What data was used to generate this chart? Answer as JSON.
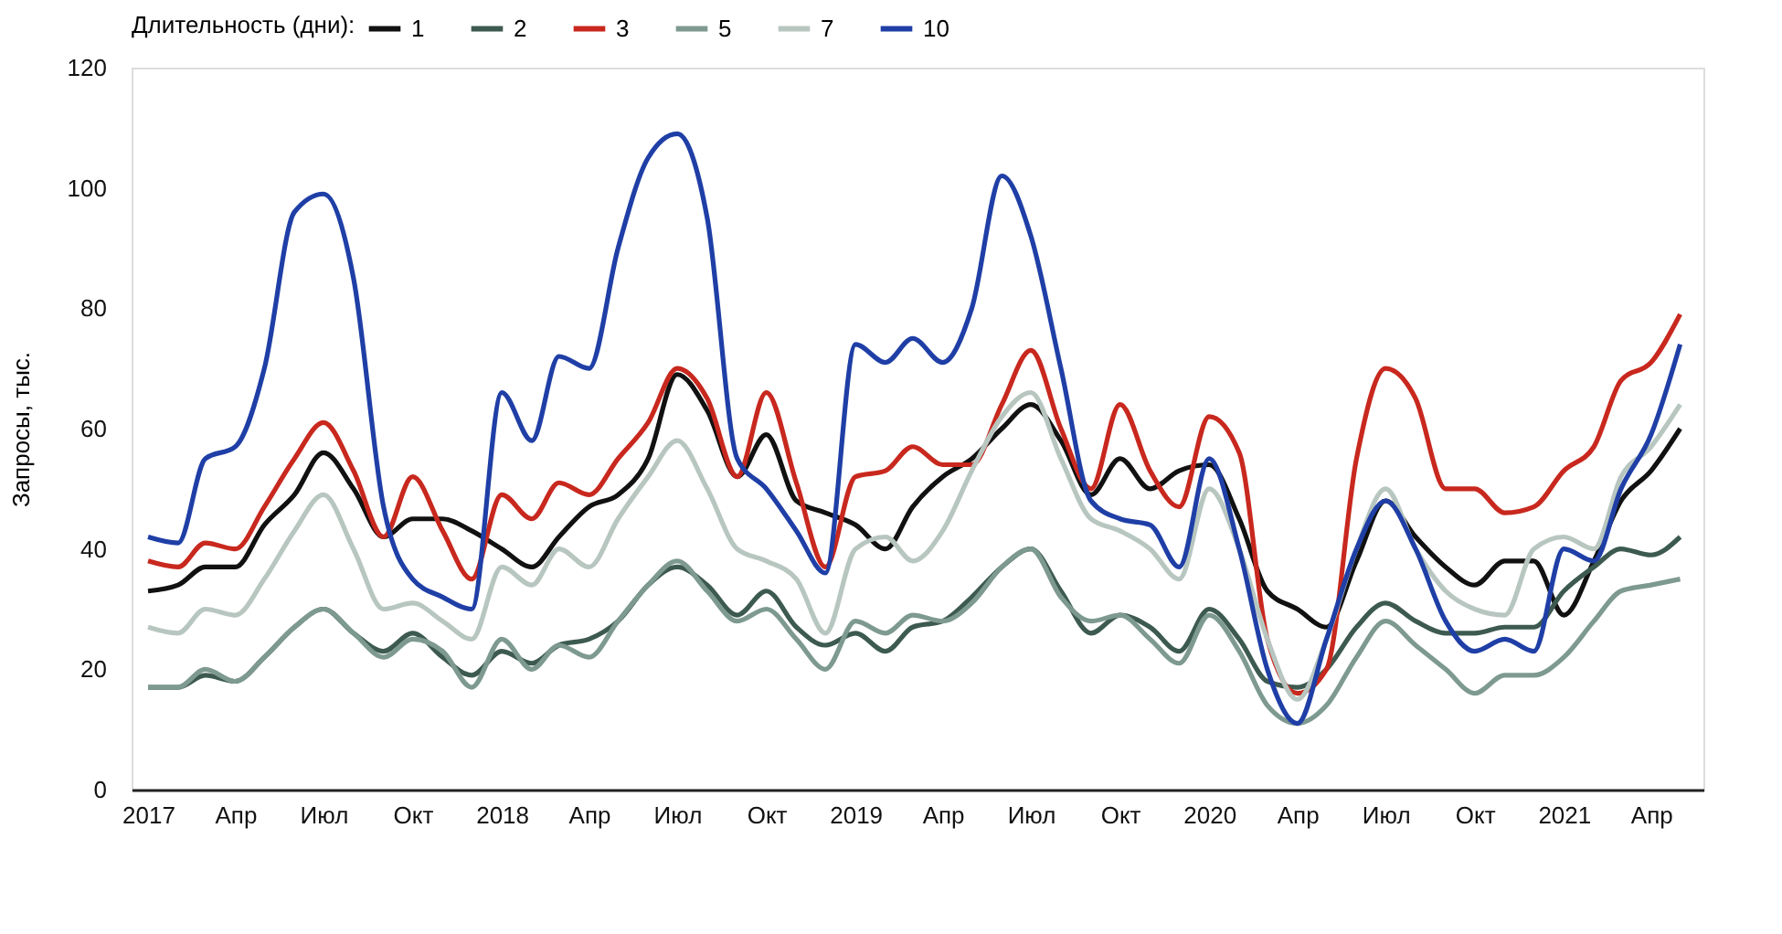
{
  "chart_data": {
    "type": "line",
    "ylabel": "Запросы, тыс.",
    "legend_title": "Длительность (дни):",
    "legend": "top",
    "grid": false,
    "marker": "none",
    "line_style": "solid",
    "x": [
      "2017-01",
      "2017-02",
      "2017-03",
      "2017-04",
      "2017-05",
      "2017-06",
      "2017-07",
      "2017-08",
      "2017-09",
      "2017-10",
      "2017-11",
      "2017-12",
      "2018-01",
      "2018-02",
      "2018-03",
      "2018-04",
      "2018-05",
      "2018-06",
      "2018-07",
      "2018-08",
      "2018-09",
      "2018-10",
      "2018-11",
      "2018-12",
      "2019-01",
      "2019-02",
      "2019-03",
      "2019-04",
      "2019-05",
      "2019-06",
      "2019-07",
      "2019-08",
      "2019-09",
      "2019-10",
      "2019-11",
      "2019-12",
      "2020-01",
      "2020-02",
      "2020-03",
      "2020-04",
      "2020-05",
      "2020-06",
      "2020-07",
      "2020-08",
      "2020-09",
      "2020-10",
      "2020-11",
      "2020-12",
      "2021-01",
      "2021-02",
      "2021-03",
      "2021-04",
      "2021-05"
    ],
    "xlim": [
      "2016-12-15",
      "2021-05-25"
    ],
    "xticks": [
      {
        "value": "2017-01",
        "label": "2017"
      },
      {
        "value": "2017-04",
        "label": "Апр"
      },
      {
        "value": "2017-07",
        "label": "Июл"
      },
      {
        "value": "2017-10",
        "label": "Окт"
      },
      {
        "value": "2018-01",
        "label": "2018"
      },
      {
        "value": "2018-04",
        "label": "Апр"
      },
      {
        "value": "2018-07",
        "label": "Июл"
      },
      {
        "value": "2018-10",
        "label": "Окт"
      },
      {
        "value": "2019-01",
        "label": "2019"
      },
      {
        "value": "2019-04",
        "label": "Апр"
      },
      {
        "value": "2019-07",
        "label": "Июл"
      },
      {
        "value": "2019-10",
        "label": "Окт"
      },
      {
        "value": "2020-01",
        "label": "2020"
      },
      {
        "value": "2020-04",
        "label": "Апр"
      },
      {
        "value": "2020-07",
        "label": "Июл"
      },
      {
        "value": "2020-10",
        "label": "Окт"
      },
      {
        "value": "2021-01",
        "label": "2021"
      },
      {
        "value": "2021-04",
        "label": "Апр"
      }
    ],
    "ylim": [
      0,
      120
    ],
    "yticks": [
      0,
      20,
      40,
      60,
      80,
      100,
      120
    ],
    "series": [
      {
        "name": "1",
        "color": "#111111",
        "values": [
          33,
          34,
          37,
          37,
          44,
          49,
          56,
          50,
          42,
          45,
          45,
          43,
          40,
          37,
          42,
          47,
          49,
          55,
          69,
          63,
          52,
          59,
          48,
          46,
          44,
          40,
          47,
          52,
          55,
          60,
          64,
          58,
          49,
          55,
          50,
          53,
          54,
          45,
          33,
          30,
          27,
          38,
          48,
          42,
          37,
          34,
          38,
          38,
          29,
          38,
          48,
          53,
          60
        ]
      },
      {
        "name": "2",
        "color": "#3d5a50",
        "values": [
          17,
          17,
          19,
          18,
          22,
          27,
          30,
          26,
          23,
          26,
          22,
          19,
          23,
          21,
          24,
          25,
          28,
          34,
          37,
          34,
          29,
          33,
          27,
          24,
          26,
          23,
          27,
          28,
          32,
          37,
          40,
          33,
          26,
          29,
          27,
          23,
          30,
          25,
          18,
          17,
          20,
          27,
          31,
          28,
          26,
          26,
          27,
          27,
          33,
          37,
          40,
          39,
          42
        ]
      },
      {
        "name": "3",
        "color": "#c8281e",
        "values": [
          38,
          37,
          41,
          40,
          47,
          55,
          61,
          53,
          42,
          52,
          43,
          35,
          49,
          45,
          51,
          49,
          55,
          61,
          70,
          65,
          52,
          66,
          51,
          37,
          52,
          53,
          57,
          54,
          54,
          64,
          73,
          60,
          50,
          64,
          53,
          47,
          62,
          56,
          25,
          16,
          20,
          55,
          70,
          65,
          50,
          50,
          46,
          47,
          53,
          57,
          68,
          71,
          79
        ]
      },
      {
        "name": "5",
        "color": "#7e9a90",
        "values": [
          17,
          17,
          20,
          18,
          22,
          27,
          30,
          26,
          22,
          25,
          23,
          17,
          25,
          20,
          24,
          22,
          28,
          34,
          38,
          33,
          28,
          30,
          25,
          20,
          28,
          26,
          29,
          28,
          31,
          37,
          40,
          32,
          28,
          29,
          25,
          21,
          29,
          23,
          14,
          11,
          14,
          22,
          28,
          24,
          20,
          16,
          19,
          19,
          22,
          28,
          33,
          34,
          35
        ]
      },
      {
        "name": "7",
        "color": "#b8c6c0",
        "values": [
          27,
          26,
          30,
          29,
          35,
          43,
          49,
          40,
          30,
          31,
          28,
          25,
          37,
          34,
          40,
          37,
          45,
          52,
          58,
          50,
          40,
          38,
          35,
          26,
          40,
          42,
          38,
          43,
          53,
          62,
          66,
          55,
          45,
          43,
          40,
          35,
          50,
          40,
          25,
          15,
          25,
          40,
          50,
          40,
          33,
          30,
          29,
          40,
          42,
          40,
          52,
          57,
          64
        ]
      },
      {
        "name": "10",
        "color": "#1f3fa6",
        "values": [
          42,
          41,
          55,
          57,
          70,
          96,
          99,
          85,
          47,
          35,
          32,
          30,
          66,
          58,
          72,
          70,
          90,
          105,
          109,
          95,
          55,
          50,
          43,
          36,
          74,
          71,
          75,
          71,
          80,
          102,
          92,
          70,
          48,
          45,
          44,
          37,
          55,
          40,
          20,
          11,
          25,
          40,
          48,
          40,
          28,
          23,
          25,
          23,
          40,
          38,
          50,
          59,
          74
        ]
      }
    ]
  }
}
